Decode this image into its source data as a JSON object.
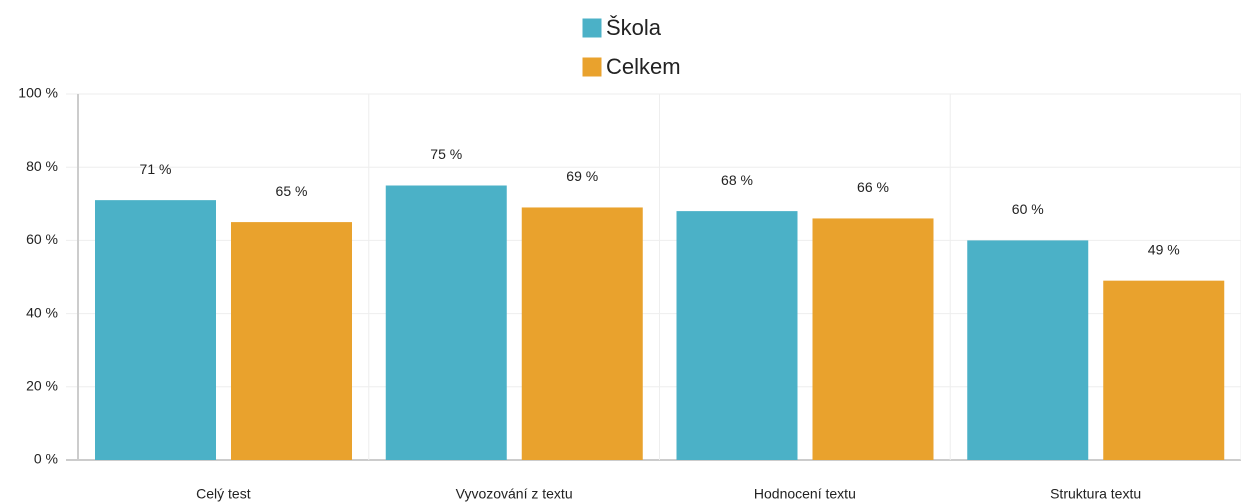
{
  "chart_data": {
    "type": "bar",
    "categories": [
      "Celý test",
      "Vyvozování z textu",
      "Hodnocení textu",
      "Struktura textu"
    ],
    "series": [
      {
        "name": "Škola",
        "color": "#4bb1c7",
        "values": [
          71,
          75,
          68,
          60
        ],
        "value_labels": [
          "71 %",
          "75 %",
          "68 %",
          "60 %"
        ]
      },
      {
        "name": "Celkem",
        "color": "#e9a22d",
        "values": [
          65,
          69,
          66,
          49
        ],
        "value_labels": [
          "65 %",
          "69 %",
          "66 %",
          "49 %"
        ]
      }
    ],
    "ylim": [
      0,
      100
    ],
    "yticks": [
      {
        "value": 0,
        "label": "0 %"
      },
      {
        "value": 20,
        "label": "20 %"
      },
      {
        "value": 40,
        "label": "40 %"
      },
      {
        "value": 60,
        "label": "60 %"
      },
      {
        "value": 80,
        "label": "80 %"
      },
      {
        "value": 100,
        "label": "100 %"
      }
    ],
    "grid": true
  }
}
